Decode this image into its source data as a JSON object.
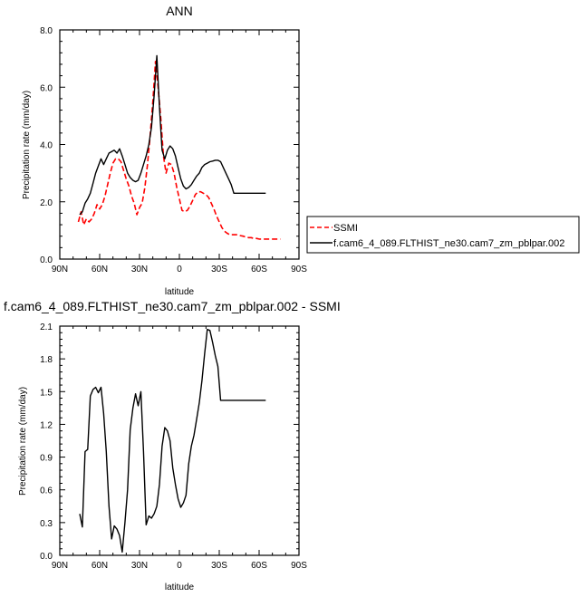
{
  "chart_data": [
    {
      "type": "line",
      "title": "ANN",
      "xlabel": "latitude",
      "ylabel": "Precipitation rate (mm/day)",
      "xlim": [
        90,
        -90
      ],
      "ylim": [
        0,
        8
      ],
      "x_ticks": [
        90,
        60,
        30,
        0,
        -30,
        -60,
        -90
      ],
      "x_tick_labels": [
        "90N",
        "60N",
        "30N",
        "0",
        "30S",
        "60S",
        "90S"
      ],
      "y_ticks": [
        0,
        2,
        4,
        6,
        8
      ],
      "y_tick_labels": [
        "0.0",
        "2.0",
        "4.0",
        "6.0",
        "8.0"
      ],
      "legend_position": "right",
      "series": [
        {
          "name": "SSMI",
          "color": "#ff0000",
          "dashed": true,
          "x": [
            76,
            74,
            72,
            70,
            68,
            66,
            64,
            62,
            60,
            58,
            56,
            54,
            52,
            50,
            48,
            46,
            44,
            42,
            40,
            38,
            36,
            34,
            32,
            30,
            28,
            26,
            24,
            22,
            20,
            18,
            16,
            14,
            12,
            10,
            8,
            6,
            4,
            2,
            0,
            -2,
            -4,
            -6,
            -8,
            -10,
            -12,
            -14,
            -16,
            -18,
            -20,
            -22,
            -24,
            -26,
            -28,
            -30,
            -32,
            -34,
            -36,
            -38,
            -40,
            -42,
            -44,
            -46,
            -48,
            -50,
            -52,
            -54,
            -56,
            -58,
            -60,
            -62,
            -64,
            -66,
            -68,
            -70,
            -72,
            -74,
            -76
          ],
          "values": [
            1.3,
            1.65,
            1.2,
            1.4,
            1.3,
            1.4,
            1.6,
            1.9,
            1.75,
            1.9,
            2.2,
            2.6,
            3.0,
            3.35,
            3.5,
            3.5,
            3.4,
            3.1,
            2.8,
            2.55,
            2.2,
            1.95,
            1.55,
            1.8,
            1.95,
            2.5,
            3.3,
            4.3,
            5.5,
            6.9,
            6.0,
            4.9,
            3.6,
            3.0,
            3.35,
            3.3,
            3.0,
            2.5,
            2.1,
            1.7,
            1.65,
            1.7,
            1.85,
            2.05,
            2.25,
            2.35,
            2.35,
            2.3,
            2.25,
            2.15,
            1.95,
            1.75,
            1.5,
            1.3,
            1.1,
            0.97,
            0.9,
            0.85,
            0.85,
            0.85,
            0.85,
            0.82,
            0.8,
            0.77,
            0.75,
            0.75,
            0.72,
            0.72,
            0.7,
            0.7,
            0.7,
            0.7,
            0.7,
            0.7,
            0.7,
            0.7,
            0.7
          ]
        },
        {
          "name": "f.cam6_4_089.FLTHIST_ne30.cam7_zm_pblpar.002",
          "color": "#000000",
          "dashed": false,
          "x": [
            75,
            73,
            71,
            69,
            67,
            65,
            63,
            61,
            59,
            57,
            55,
            53,
            51,
            49,
            47,
            45,
            43,
            41,
            39,
            37,
            35,
            33,
            31,
            29,
            27,
            25,
            23,
            21,
            19,
            17,
            15,
            13,
            11,
            9,
            7,
            5,
            3,
            1,
            -1,
            -3,
            -5,
            -7,
            -9,
            -11,
            -13,
            -15,
            -17,
            -19,
            -21,
            -23,
            -25,
            -27,
            -29,
            -31,
            -33,
            -35,
            -37,
            -39,
            -41,
            -43,
            -45,
            -47,
            -49,
            -51,
            -53,
            -55,
            -57,
            -59,
            -61,
            -63,
            -65
          ],
          "values": [
            1.55,
            1.65,
            1.95,
            2.1,
            2.3,
            2.65,
            3.0,
            3.25,
            3.5,
            3.3,
            3.5,
            3.7,
            3.75,
            3.8,
            3.7,
            3.85,
            3.6,
            3.3,
            3.0,
            2.85,
            2.75,
            2.7,
            2.75,
            3.0,
            3.3,
            3.6,
            4.0,
            4.6,
            5.7,
            7.1,
            5.3,
            3.8,
            3.5,
            3.8,
            3.95,
            3.85,
            3.6,
            3.2,
            2.8,
            2.55,
            2.45,
            2.5,
            2.6,
            2.75,
            2.9,
            3.0,
            3.2,
            3.3,
            3.35,
            3.4,
            3.42,
            3.45,
            3.45,
            3.4,
            3.2,
            3.0,
            2.8,
            2.6,
            2.3,
            2.3,
            2.3,
            2.3,
            2.3,
            2.3,
            2.3,
            2.3,
            2.3,
            2.3,
            2.3,
            2.3,
            2.3
          ]
        }
      ]
    },
    {
      "type": "line",
      "title": "f.cam6_4_089.FLTHIST_ne30.cam7_zm_pblpar.002 - SSMI",
      "xlabel": "latitude",
      "ylabel": "Precipitation rate (mm/day)",
      "xlim": [
        90,
        -90
      ],
      "ylim": [
        0,
        2.1
      ],
      "x_ticks": [
        90,
        60,
        30,
        0,
        -30,
        -60,
        -90
      ],
      "x_tick_labels": [
        "90N",
        "60N",
        "30N",
        "0",
        "30S",
        "60S",
        "90S"
      ],
      "y_ticks": [
        0,
        0.3,
        0.6,
        0.9,
        1.2,
        1.5,
        1.8,
        2.1
      ],
      "y_tick_labels": [
        "0.0",
        "0.3",
        "0.6",
        "0.9",
        "1.2",
        "1.5",
        "1.8",
        "2.1"
      ],
      "series": [
        {
          "name": "",
          "color": "#000000",
          "dashed": false,
          "x": [
            75,
            73,
            71,
            69,
            67,
            65,
            63,
            61,
            59,
            57,
            55,
            53,
            51,
            49,
            47,
            45,
            43,
            41,
            39,
            37,
            35,
            33,
            31,
            29,
            27,
            25,
            23,
            21,
            19,
            17,
            15,
            13,
            11,
            9,
            7,
            5,
            3,
            1,
            -1,
            -3,
            -5,
            -7,
            -9,
            -11,
            -13,
            -15,
            -17,
            -19,
            -21,
            -23,
            -25,
            -27,
            -29,
            -31,
            -33,
            -35,
            -37,
            -39,
            -41,
            -43,
            -45,
            -47,
            -49,
            -51,
            -53,
            -55,
            -57,
            -59,
            -61,
            -63,
            -65
          ],
          "values": [
            0.38,
            0.26,
            0.95,
            0.97,
            1.46,
            1.52,
            1.54,
            1.49,
            1.54,
            1.3,
            0.95,
            0.45,
            0.15,
            0.27,
            0.24,
            0.18,
            0.03,
            0.3,
            0.6,
            1.15,
            1.35,
            1.48,
            1.37,
            1.5,
            0.95,
            0.28,
            0.36,
            0.34,
            0.38,
            0.45,
            0.65,
            1.0,
            1.17,
            1.14,
            1.05,
            0.8,
            0.65,
            0.52,
            0.44,
            0.48,
            0.55,
            0.84,
            1.0,
            1.1,
            1.25,
            1.4,
            1.6,
            1.85,
            2.07,
            2.06,
            1.95,
            1.83,
            1.73,
            1.42,
            1.42,
            1.42,
            1.42,
            1.42,
            1.42,
            1.42,
            1.42,
            1.42,
            1.42,
            1.42,
            1.42,
            1.42,
            1.42,
            1.42,
            1.42,
            1.42,
            1.42
          ]
        }
      ]
    }
  ]
}
